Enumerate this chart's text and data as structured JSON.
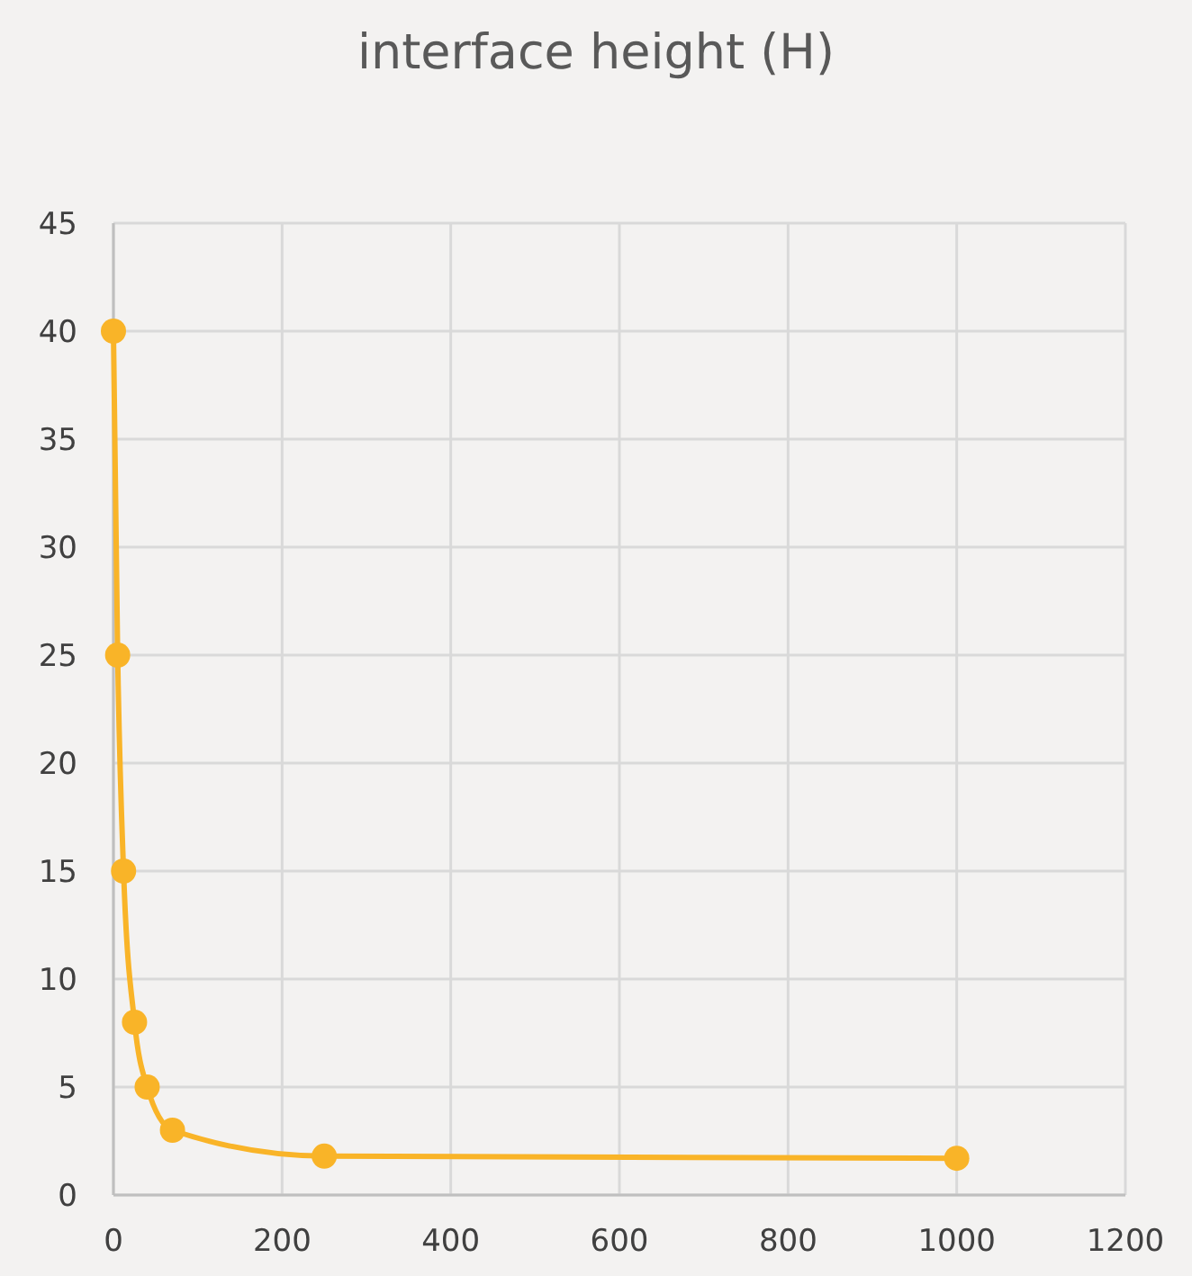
{
  "chart_data": {
    "type": "line",
    "title": "interface height (H)",
    "x": [
      0,
      5,
      12,
      25,
      40,
      70,
      250,
      1000
    ],
    "series": [
      {
        "color": "#f9b428",
        "values": [
          40,
          25,
          15,
          8,
          5,
          3,
          1.8,
          1.7
        ]
      }
    ],
    "xlim": [
      0,
      1200
    ],
    "xticks": [
      0,
      200,
      400,
      600,
      800,
      1000,
      1200
    ],
    "ylim": [
      0,
      45
    ],
    "yticks": [
      0,
      5,
      10,
      15,
      20,
      25,
      30,
      35,
      40,
      45
    ],
    "grid": true,
    "marker": "circle",
    "line_style": "solid"
  }
}
